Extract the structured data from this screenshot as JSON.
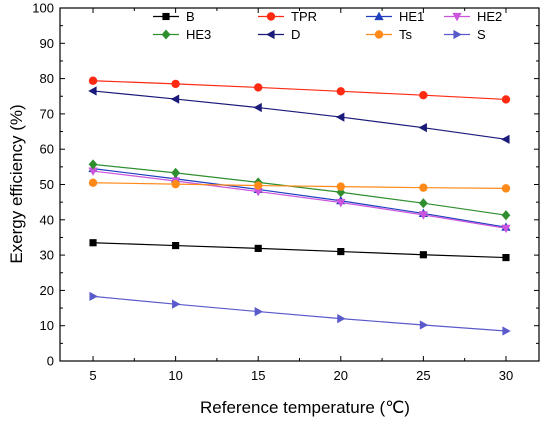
{
  "chart_data": {
    "type": "line",
    "xlabel": "Reference temperature (℃)",
    "ylabel": "Exergy efficiency (%)",
    "xlim": [
      3,
      32
    ],
    "ylim": [
      0,
      100
    ],
    "xticks": [
      5,
      10,
      15,
      20,
      25,
      30
    ],
    "yticks": [
      0,
      10,
      20,
      30,
      40,
      50,
      60,
      70,
      80,
      90,
      100
    ],
    "x": [
      5,
      10,
      15,
      20,
      25,
      30
    ],
    "grid": false,
    "legend_position": "top-center",
    "series": [
      {
        "name": "B",
        "color": "#000000",
        "marker": "square",
        "values": [
          33.5,
          32.7,
          31.9,
          31.0,
          30.1,
          29.3
        ]
      },
      {
        "name": "TPR",
        "color": "#ff2a12",
        "marker": "circle",
        "values": [
          79.4,
          78.5,
          77.5,
          76.4,
          75.3,
          74.1
        ]
      },
      {
        "name": "HE1",
        "color": "#1f3fbf",
        "marker": "triangle-up",
        "values": [
          54.5,
          51.6,
          48.6,
          45.4,
          41.8,
          37.9
        ]
      },
      {
        "name": "HE2",
        "color": "#cc55dd",
        "marker": "triangle-down",
        "values": [
          53.8,
          51.0,
          48.0,
          44.9,
          41.4,
          37.6
        ]
      },
      {
        "name": "HE3",
        "color": "#2f8f2f",
        "marker": "diamond",
        "values": [
          55.7,
          53.3,
          50.6,
          47.8,
          44.7,
          41.3
        ]
      },
      {
        "name": "D",
        "color": "#1a1a7a",
        "marker": "triangle-left",
        "values": [
          76.5,
          74.2,
          71.8,
          69.1,
          66.1,
          62.8
        ]
      },
      {
        "name": "Ts",
        "color": "#ff8a1a",
        "marker": "circle",
        "values": [
          50.5,
          50.1,
          49.7,
          49.4,
          49.1,
          48.9
        ]
      },
      {
        "name": "S",
        "color": "#5a5acc",
        "marker": "triangle-right",
        "values": [
          18.3,
          16.1,
          14.0,
          12.0,
          10.2,
          8.5
        ]
      }
    ]
  }
}
